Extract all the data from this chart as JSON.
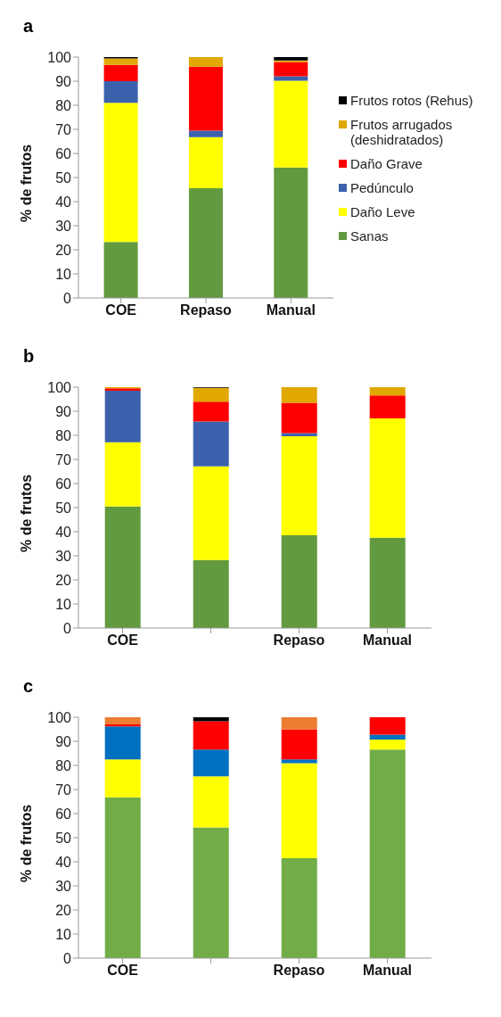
{
  "chart_data": [
    {
      "type": "bar",
      "title": "a",
      "stacked": true,
      "ylabel": "% de frutos",
      "categories": [
        "COE",
        "Repaso",
        "Manual"
      ],
      "ylim": [
        0,
        100
      ],
      "yticks": [
        0,
        10,
        20,
        30,
        40,
        50,
        60,
        70,
        80,
        90,
        100
      ],
      "grid": false,
      "legend": "right",
      "series": [
        {
          "name": "Sanas",
          "color": "#629a3f",
          "values": [
            23.2,
            45.6,
            54.2
          ]
        },
        {
          "name": "Daño Leve",
          "color": "#ffff00",
          "values": [
            57.8,
            21.2,
            36
          ]
        },
        {
          "name": "Pedúnculo",
          "color": "#3c62ad",
          "values": [
            9,
            2.6,
            1.8
          ]
        },
        {
          "name": "Daño Grave",
          "color": "#ff0000",
          "values": [
            6.8,
            26.6,
            6
          ]
        },
        {
          "name": "Frutos arrugados (deshidratados)",
          "color": "#e0a800",
          "values": [
            2.6,
            4,
            0.6
          ]
        },
        {
          "name": "Frutos rotos (Rehus)",
          "color": "#000000",
          "values": [
            0.6,
            0,
            1.4
          ]
        }
      ]
    },
    {
      "type": "bar",
      "title": "b",
      "stacked": true,
      "ylabel": "% de frutos",
      "categories": [
        "COE",
        null,
        "Repaso",
        "Manual"
      ],
      "ylim": [
        0,
        100
      ],
      "yticks": [
        0,
        10,
        20,
        30,
        40,
        50,
        60,
        70,
        80,
        90,
        100
      ],
      "grid": false,
      "series": [
        {
          "color": "#629a3f",
          "values": [
            50.5,
            28.2,
            38.5,
            37.5
          ]
        },
        {
          "color": "#ffff00",
          "values": [
            26.6,
            38.9,
            41.1,
            49.5
          ]
        },
        {
          "color": "#3c62ad",
          "values": [
            21.4,
            18.6,
            1.3,
            0
          ]
        },
        {
          "color": "#ff0000",
          "values": [
            1,
            8.3,
            12.6,
            9.6
          ]
        },
        {
          "color": "#e0a800",
          "values": [
            0.5,
            5.7,
            6.5,
            3.4
          ]
        },
        {
          "color": "#000000",
          "values": [
            0,
            0.3,
            0,
            0
          ]
        }
      ]
    },
    {
      "type": "bar",
      "title": "c",
      "stacked": true,
      "ylabel": "% de frutos",
      "categories": [
        "COE",
        null,
        "Repaso",
        "Manual"
      ],
      "ylim": [
        0,
        100
      ],
      "yticks": [
        0,
        10,
        20,
        30,
        40,
        50,
        60,
        70,
        80,
        90,
        100
      ],
      "grid": false,
      "series": [
        {
          "color": "#70ad47",
          "values": [
            66.8,
            54.3,
            41.5,
            86.6
          ]
        },
        {
          "color": "#ffff00",
          "values": [
            15.7,
            21.2,
            39.4,
            4.1
          ]
        },
        {
          "color": "#0070c0",
          "values": [
            13.7,
            11.1,
            1.6,
            2.1
          ]
        },
        {
          "color": "#ff0000",
          "values": [
            0.8,
            11.7,
            12.5,
            7.2
          ]
        },
        {
          "color": "#ed7d31",
          "values": [
            3,
            0,
            5,
            0
          ]
        },
        {
          "color": "#000000",
          "values": [
            0,
            1.7,
            0,
            0
          ]
        }
      ]
    }
  ]
}
